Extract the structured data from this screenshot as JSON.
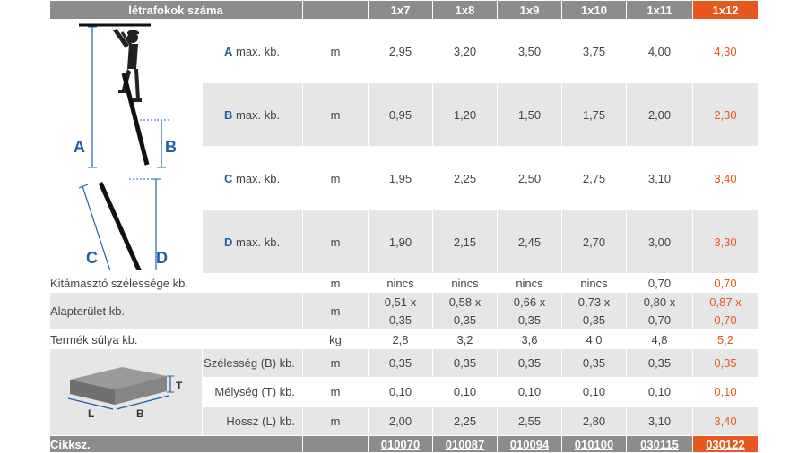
{
  "header": {
    "title": "létrafokok száma",
    "columns": [
      "1x7",
      "1x8",
      "1x9",
      "1x10",
      "1x11",
      "1x12"
    ]
  },
  "diagram": {
    "letters": {
      "a": "A",
      "b": "B",
      "c": "C",
      "d": "D",
      "t": "T",
      "l": "L",
      "bb": "B"
    }
  },
  "rows": [
    {
      "label_letter": "A",
      "label_text": " max. kb.",
      "unit": "m",
      "values": [
        "2,95",
        "3,20",
        "3,50",
        "3,75",
        "4,00",
        "4,30"
      ]
    },
    {
      "label_letter": "B",
      "label_text": " max. kb.",
      "unit": "m",
      "values": [
        "0,95",
        "1,20",
        "1,50",
        "1,75",
        "2,00",
        "2,30"
      ]
    },
    {
      "label_letter": "C",
      "label_text": " max. kb.",
      "unit": "m",
      "values": [
        "1,95",
        "2,25",
        "2,50",
        "2,75",
        "3,10",
        "3,40"
      ]
    },
    {
      "label_letter": "D",
      "label_text": " max. kb.",
      "unit": "m",
      "values": [
        "1,90",
        "2,15",
        "2,45",
        "2,70",
        "3,00",
        "3,30"
      ]
    }
  ],
  "support": {
    "label": "Kitámasztó szélessége kb.",
    "unit": "m",
    "values": [
      "nincs",
      "nincs",
      "nincs",
      "nincs",
      "0,70",
      "0,70"
    ]
  },
  "footprint": {
    "label": "Alapterület kb.",
    "unit": "m",
    "top": [
      "0,51 x",
      "0,58 x",
      "0,66 x",
      "0,73 x",
      "0,80 x",
      "0,87 x"
    ],
    "bottom": [
      "0,35",
      "0,35",
      "0,35",
      "0,35",
      "0,70",
      "0,70"
    ]
  },
  "weight": {
    "label": "Termék súlya kb.",
    "unit": "kg",
    "values": [
      "2,8",
      "3,2",
      "3,6",
      "4,0",
      "4,8",
      "5,2"
    ]
  },
  "pack": [
    {
      "label": "Szélesség (B) kb.",
      "unit": "m",
      "values": [
        "0,35",
        "0,35",
        "0,35",
        "0,35",
        "0,35",
        "0,35"
      ]
    },
    {
      "label": "Mélység (T) kb.",
      "unit": "m",
      "values": [
        "0,10",
        "0,10",
        "0,10",
        "0,10",
        "0,10",
        "0,10"
      ]
    },
    {
      "label": "Hossz (L) kb.",
      "unit": "m",
      "values": [
        "2,00",
        "2,25",
        "2,55",
        "2,80",
        "3,10",
        "3,40"
      ]
    }
  ],
  "footer": {
    "label": "Cikksz.",
    "codes": [
      "010070",
      "010087",
      "010094",
      "010100",
      "030115",
      "030122"
    ]
  }
}
